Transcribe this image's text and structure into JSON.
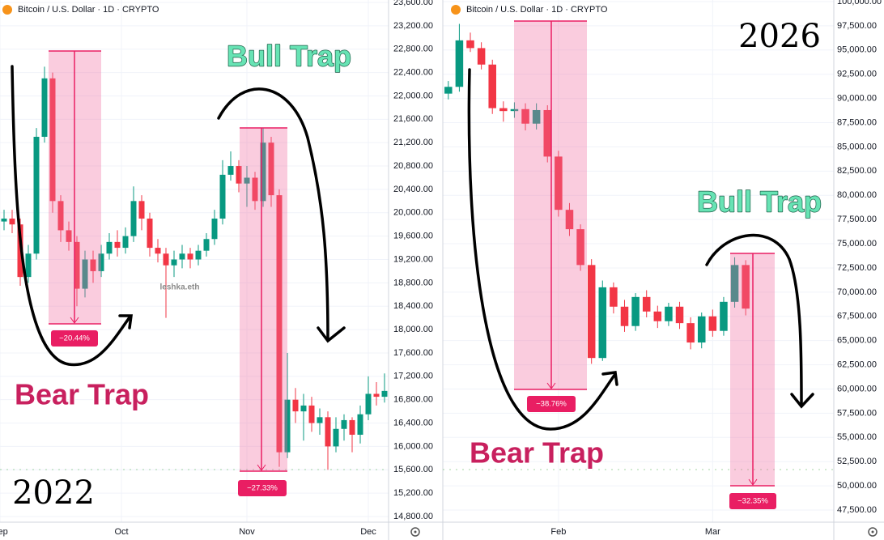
{
  "chart_data": [
    {
      "type": "candlestick",
      "title": "Bitcoin / U.S. Dollar · 1D · CRYPTO",
      "up_color": "#089981",
      "down_color": "#f23645",
      "annotations": [
        "Bull Trap",
        "Bear Trap",
        "2022",
        "−20.44%",
        "−27.33%"
      ],
      "watermark": "leshka.eth",
      "x": [
        1,
        3,
        5,
        7,
        9,
        11,
        13,
        15,
        17,
        19,
        21,
        23,
        25,
        27,
        29,
        31,
        33,
        35,
        37,
        39,
        41,
        43,
        45,
        47,
        49,
        51,
        53,
        55,
        57,
        59,
        61,
        63,
        65,
        67,
        69,
        71,
        73,
        75,
        77,
        79,
        81,
        83,
        85,
        87,
        89,
        91,
        93,
        95
      ],
      "open": [
        19850,
        19900,
        19800,
        18900,
        19300,
        21300,
        22300,
        20200,
        19700,
        19500,
        18700,
        19200,
        19000,
        19300,
        19500,
        19400,
        19600,
        20200,
        19900,
        19400,
        19300,
        19100,
        19200,
        19300,
        19200,
        19350,
        19550,
        19900,
        20650,
        20800,
        20500,
        20600,
        20200,
        21200,
        20300,
        15900,
        16800,
        16600,
        16700,
        16400,
        16500,
        16000,
        16300,
        16450,
        16200,
        16550,
        16900,
        16850
      ],
      "high": [
        20050,
        20050,
        19900,
        19450,
        21450,
        22500,
        22400,
        20300,
        19850,
        19600,
        19350,
        19350,
        19450,
        19650,
        19700,
        19750,
        20450,
        20300,
        20000,
        19550,
        19400,
        19350,
        19450,
        19400,
        19450,
        19650,
        20050,
        20900,
        21050,
        20900,
        20800,
        20700,
        21450,
        21300,
        20400,
        17600,
        17000,
        16900,
        16850,
        16650,
        16600,
        16500,
        16550,
        16500,
        16700,
        17200,
        17100,
        17250
      ],
      "low": [
        19700,
        19650,
        18750,
        18800,
        19200,
        21200,
        20000,
        19500,
        19350,
        18400,
        18550,
        18800,
        18900,
        19200,
        19250,
        19300,
        19500,
        19700,
        19250,
        19150,
        18200,
        18900,
        19050,
        19050,
        19100,
        19250,
        19450,
        19800,
        20550,
        20350,
        20100,
        20050,
        20100,
        20100,
        15650,
        15800,
        16400,
        16100,
        16250,
        16200,
        15600,
        15900,
        16100,
        15900,
        16050,
        16450,
        16700,
        16750
      ],
      "close": [
        19900,
        19800,
        18900,
        19300,
        21300,
        22300,
        20200,
        19700,
        19500,
        18700,
        19200,
        19000,
        19300,
        19500,
        19400,
        19600,
        20200,
        19900,
        19400,
        19300,
        19100,
        19200,
        19300,
        19200,
        19350,
        19550,
        19900,
        20650,
        20800,
        20500,
        20600,
        20200,
        21200,
        20300,
        15900,
        16800,
        16600,
        16700,
        16400,
        16500,
        16000,
        16300,
        16450,
        16200,
        16550,
        16900,
        16850,
        16950
      ],
      "xlim": [
        0,
        96
      ],
      "xticks": [
        {
          "value": 0,
          "label": "Sep"
        },
        {
          "value": 30,
          "label": "Oct"
        },
        {
          "value": 61,
          "label": "Nov"
        },
        {
          "value": 91,
          "label": "Dec"
        }
      ],
      "ylim": [
        14800,
        23600
      ],
      "yticks": [
        {
          "value": 23600,
          "label": "23,600.00"
        },
        {
          "value": 23200,
          "label": "23,200.00"
        },
        {
          "value": 22800,
          "label": "22,800.00"
        },
        {
          "value": 22400,
          "label": "22,400.00"
        },
        {
          "value": 22000,
          "label": "22,000.00"
        },
        {
          "value": 21600,
          "label": "21,600.00"
        },
        {
          "value": 21200,
          "label": "21,200.00"
        },
        {
          "value": 20800,
          "label": "20,800.00"
        },
        {
          "value": 20400,
          "label": "20,400.00"
        },
        {
          "value": 20000,
          "label": "20,000.00"
        },
        {
          "value": 19600,
          "label": "19,600.00"
        },
        {
          "value": 19200,
          "label": "19,200.00"
        },
        {
          "value": 18800,
          "label": "18,800.00"
        },
        {
          "value": 18400,
          "label": "18,400.00"
        },
        {
          "value": 18000,
          "label": "18,000.00"
        },
        {
          "value": 17600,
          "label": "17,600.00"
        },
        {
          "value": 17200,
          "label": "17,200.00"
        },
        {
          "value": 16800,
          "label": "16,800.00"
        },
        {
          "value": 16400,
          "label": "16,400.00"
        },
        {
          "value": 16000,
          "label": "16,000.00"
        },
        {
          "value": 15600,
          "label": "15,600.00"
        },
        {
          "value": 15200,
          "label": "15,200.00"
        },
        {
          "value": 14800,
          "label": "14,800.00"
        }
      ]
    },
    {
      "type": "candlestick",
      "title": "Bitcoin / U.S. Dollar · 1D · CRYPTO",
      "up_color": "#089981",
      "down_color": "#f23645",
      "annotations": [
        "Bull Trap",
        "Bear Trap",
        "2026",
        "−38.76%",
        "−32.35%"
      ],
      "x": [
        1,
        3,
        5,
        7,
        9,
        11,
        13,
        15,
        17,
        19,
        21,
        23,
        25,
        27,
        29,
        31,
        33,
        35,
        37,
        39,
        41,
        43,
        45,
        47,
        49,
        51,
        53,
        55
      ],
      "open": [
        90500,
        91200,
        96000,
        95200,
        93500,
        89000,
        88700,
        88900,
        87400,
        88800,
        84000,
        78500,
        76500,
        72800,
        63200,
        70500,
        68500,
        66500,
        69500,
        68000,
        67000,
        68500,
        66800,
        64800,
        67500,
        66000,
        69000,
        72800
      ],
      "high": [
        91800,
        97700,
        96800,
        95800,
        94000,
        89700,
        89600,
        89500,
        89500,
        89300,
        84600,
        79200,
        77000,
        73400,
        71200,
        71000,
        69200,
        69900,
        70200,
        68600,
        68900,
        69000,
        67400,
        67900,
        68200,
        69500,
        73600,
        73300
      ],
      "low": [
        89900,
        90700,
        94800,
        93000,
        88400,
        87600,
        88000,
        86700,
        86800,
        83400,
        77800,
        75800,
        72200,
        62600,
        62900,
        67800,
        65900,
        66000,
        67400,
        66300,
        66500,
        66200,
        64100,
        64200,
        65400,
        65500,
        68400,
        67600
      ],
      "close": [
        91200,
        96000,
        95200,
        93500,
        89000,
        88700,
        88900,
        87400,
        88800,
        84000,
        78500,
        76500,
        72800,
        63200,
        70500,
        68500,
        66500,
        69500,
        68000,
        67000,
        68500,
        66800,
        64800,
        67500,
        66000,
        69000,
        72800,
        68300
      ],
      "xlim": [
        0,
        71
      ],
      "xticks": [
        {
          "value": 21,
          "label": "Feb"
        },
        {
          "value": 49,
          "label": "Mar"
        }
      ],
      "ylim": [
        47500,
        100000
      ],
      "yticks": [
        {
          "value": 100000,
          "label": "100,000.00"
        },
        {
          "value": 97500,
          "label": "97,500.00"
        },
        {
          "value": 95000,
          "label": "95,000.00"
        },
        {
          "value": 92500,
          "label": "92,500.00"
        },
        {
          "value": 90000,
          "label": "90,000.00"
        },
        {
          "value": 87500,
          "label": "87,500.00"
        },
        {
          "value": 85000,
          "label": "85,000.00"
        },
        {
          "value": 82500,
          "label": "82,500.00"
        },
        {
          "value": 80000,
          "label": "80,000.00"
        },
        {
          "value": 77500,
          "label": "77,500.00"
        },
        {
          "value": 75000,
          "label": "75,000.00"
        },
        {
          "value": 72500,
          "label": "72,500.00"
        },
        {
          "value": 70000,
          "label": "70,000.00"
        },
        {
          "value": 67500,
          "label": "67,500.00"
        },
        {
          "value": 65000,
          "label": "65,000.00"
        },
        {
          "value": 62500,
          "label": "62,500.00"
        },
        {
          "value": 60000,
          "label": "60,000.00"
        },
        {
          "value": 57500,
          "label": "57,500.00"
        },
        {
          "value": 55000,
          "label": "55,000.00"
        },
        {
          "value": 52500,
          "label": "52,500.00"
        },
        {
          "value": 50000,
          "label": "50,000.00"
        },
        {
          "value": 47500,
          "label": "47,500.00"
        }
      ]
    }
  ]
}
